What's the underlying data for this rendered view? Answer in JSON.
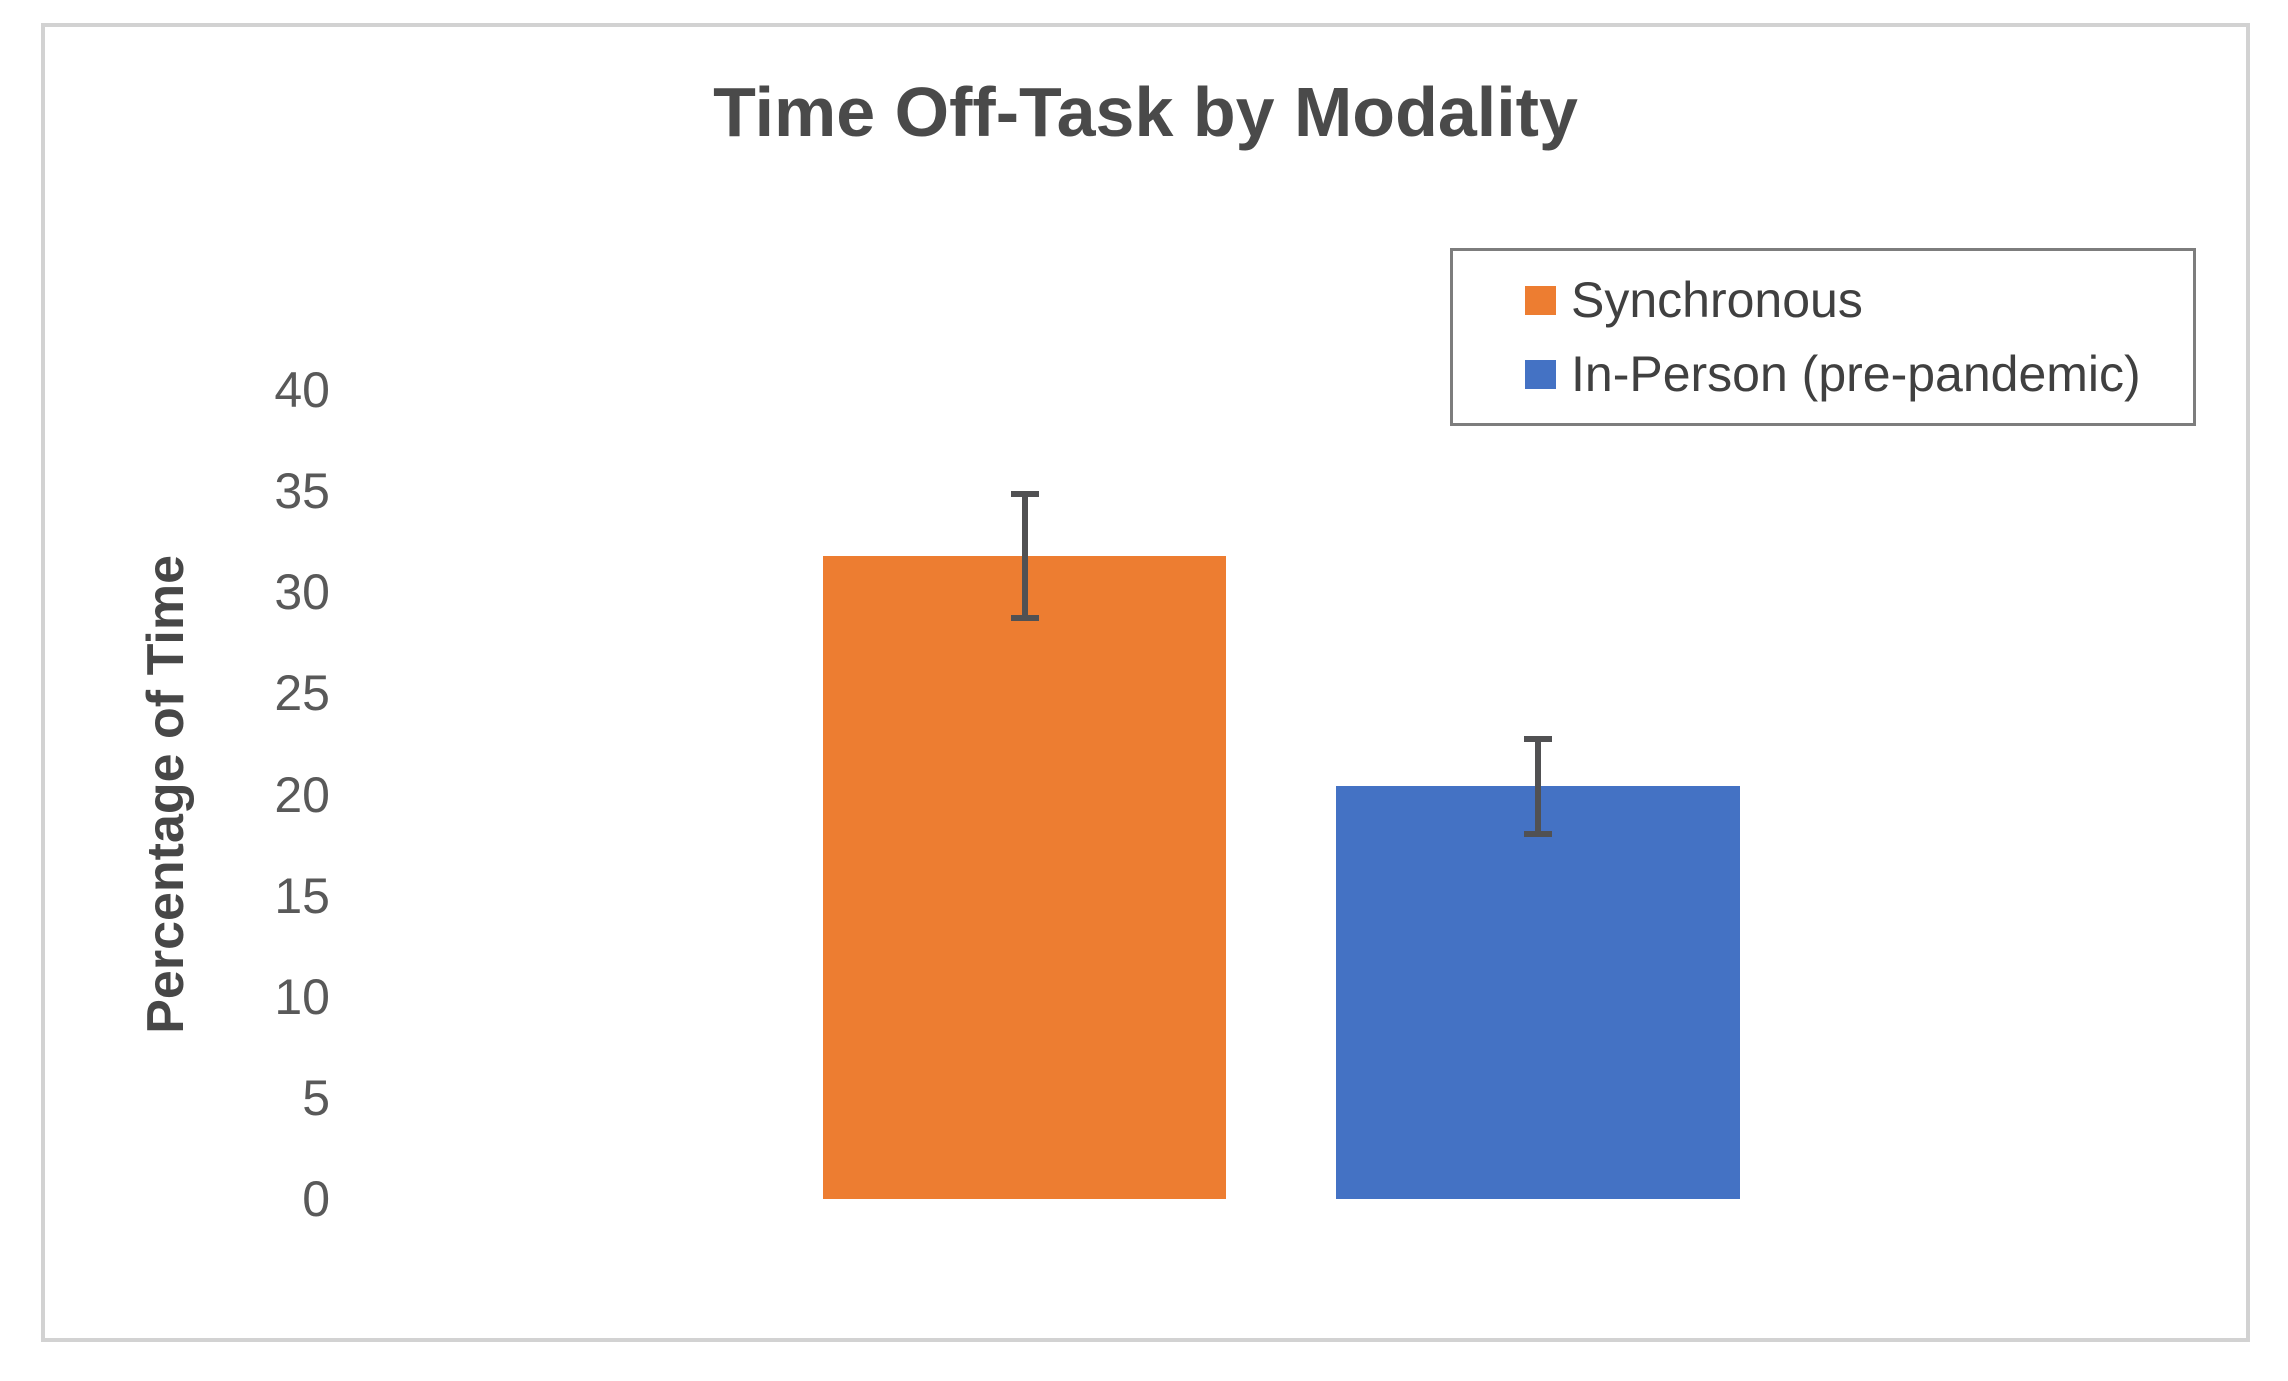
{
  "chart_data": {
    "type": "bar",
    "title": "Time Off-Task by Modality",
    "xlabel": "",
    "ylabel": "Percentage of Time",
    "ylim": [
      0,
      40
    ],
    "yticks": [
      40,
      35,
      30,
      25,
      20,
      15,
      10,
      5,
      0
    ],
    "grid": false,
    "legend_position": "top-right",
    "categories": [
      "Synchronous",
      "In-Person (pre-pandemic)"
    ],
    "series": [
      {
        "name": "Synchronous",
        "value": 31.8,
        "error": 3.2,
        "color": "#ED7D31"
      },
      {
        "name": "In-Person (pre-pandemic)",
        "value": 20.4,
        "error": 2.5,
        "color": "#4472C4"
      }
    ]
  }
}
